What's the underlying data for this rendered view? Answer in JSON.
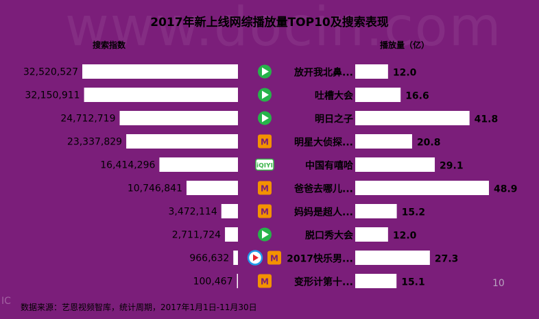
{
  "title": "2017年新上线网综播放量TOP10及搜索表现",
  "left_header": "搜索指数",
  "right_header": "播放量（亿）",
  "footer": "数据来源：艺恩视频智库，统计周期，2017年1月1日-11月30日",
  "page_number": "10",
  "watermark": "www.docin.com",
  "colors": {
    "background": "#7b1e7a",
    "bar": "#ffffff",
    "tencent": "#27b34a",
    "mango": "#f39200",
    "iqiyi": "#3bb54a"
  },
  "chart_data": [
    {
      "type": "bar",
      "orientation": "horizontal",
      "direction": "right-to-left",
      "series": [
        {
          "name": "搜索指数",
          "values": [
            32520527,
            32150911,
            24712719,
            23337829,
            16414296,
            10746841,
            3472114,
            2711724,
            966632,
            100467
          ]
        }
      ],
      "value_labels": [
        "32,520,527",
        "32,150,911",
        "24,712,719",
        "23,337,829",
        "16,414,296",
        "10,746,841",
        "3,472,114",
        "2,711,724",
        "966,632",
        "100,467"
      ]
    },
    {
      "type": "bar",
      "orientation": "horizontal",
      "categories": [
        "放开我北鼻...",
        "吐槽大会",
        "明日之子",
        "明星大侦探...",
        "中国有嘻哈",
        "爸爸去哪儿...",
        "妈妈是超人...",
        "脱口秀大会",
        "2017快乐男...",
        "变形计第十..."
      ],
      "series": [
        {
          "name": "播放量（亿）",
          "values": [
            12.0,
            16.6,
            41.8,
            20.8,
            29.1,
            48.9,
            15.2,
            12.0,
            27.3,
            15.1
          ]
        }
      ],
      "value_labels": [
        "12.0",
        "16.6",
        "41.8",
        "20.8",
        "29.1",
        "48.9",
        "15.2",
        "12.0",
        "27.3",
        "15.1"
      ],
      "platform_icons": [
        [
          "tencent-video-icon"
        ],
        [
          "tencent-video-icon"
        ],
        [
          "tencent-video-icon"
        ],
        [
          "mango-tv-icon"
        ],
        [
          "iqiyi-icon"
        ],
        [
          "mango-tv-icon"
        ],
        [
          "mango-tv-icon"
        ],
        [
          "tencent-video-icon"
        ],
        [
          "youku-icon",
          "mango-tv-icon"
        ],
        [
          "mango-tv-icon"
        ]
      ]
    }
  ]
}
